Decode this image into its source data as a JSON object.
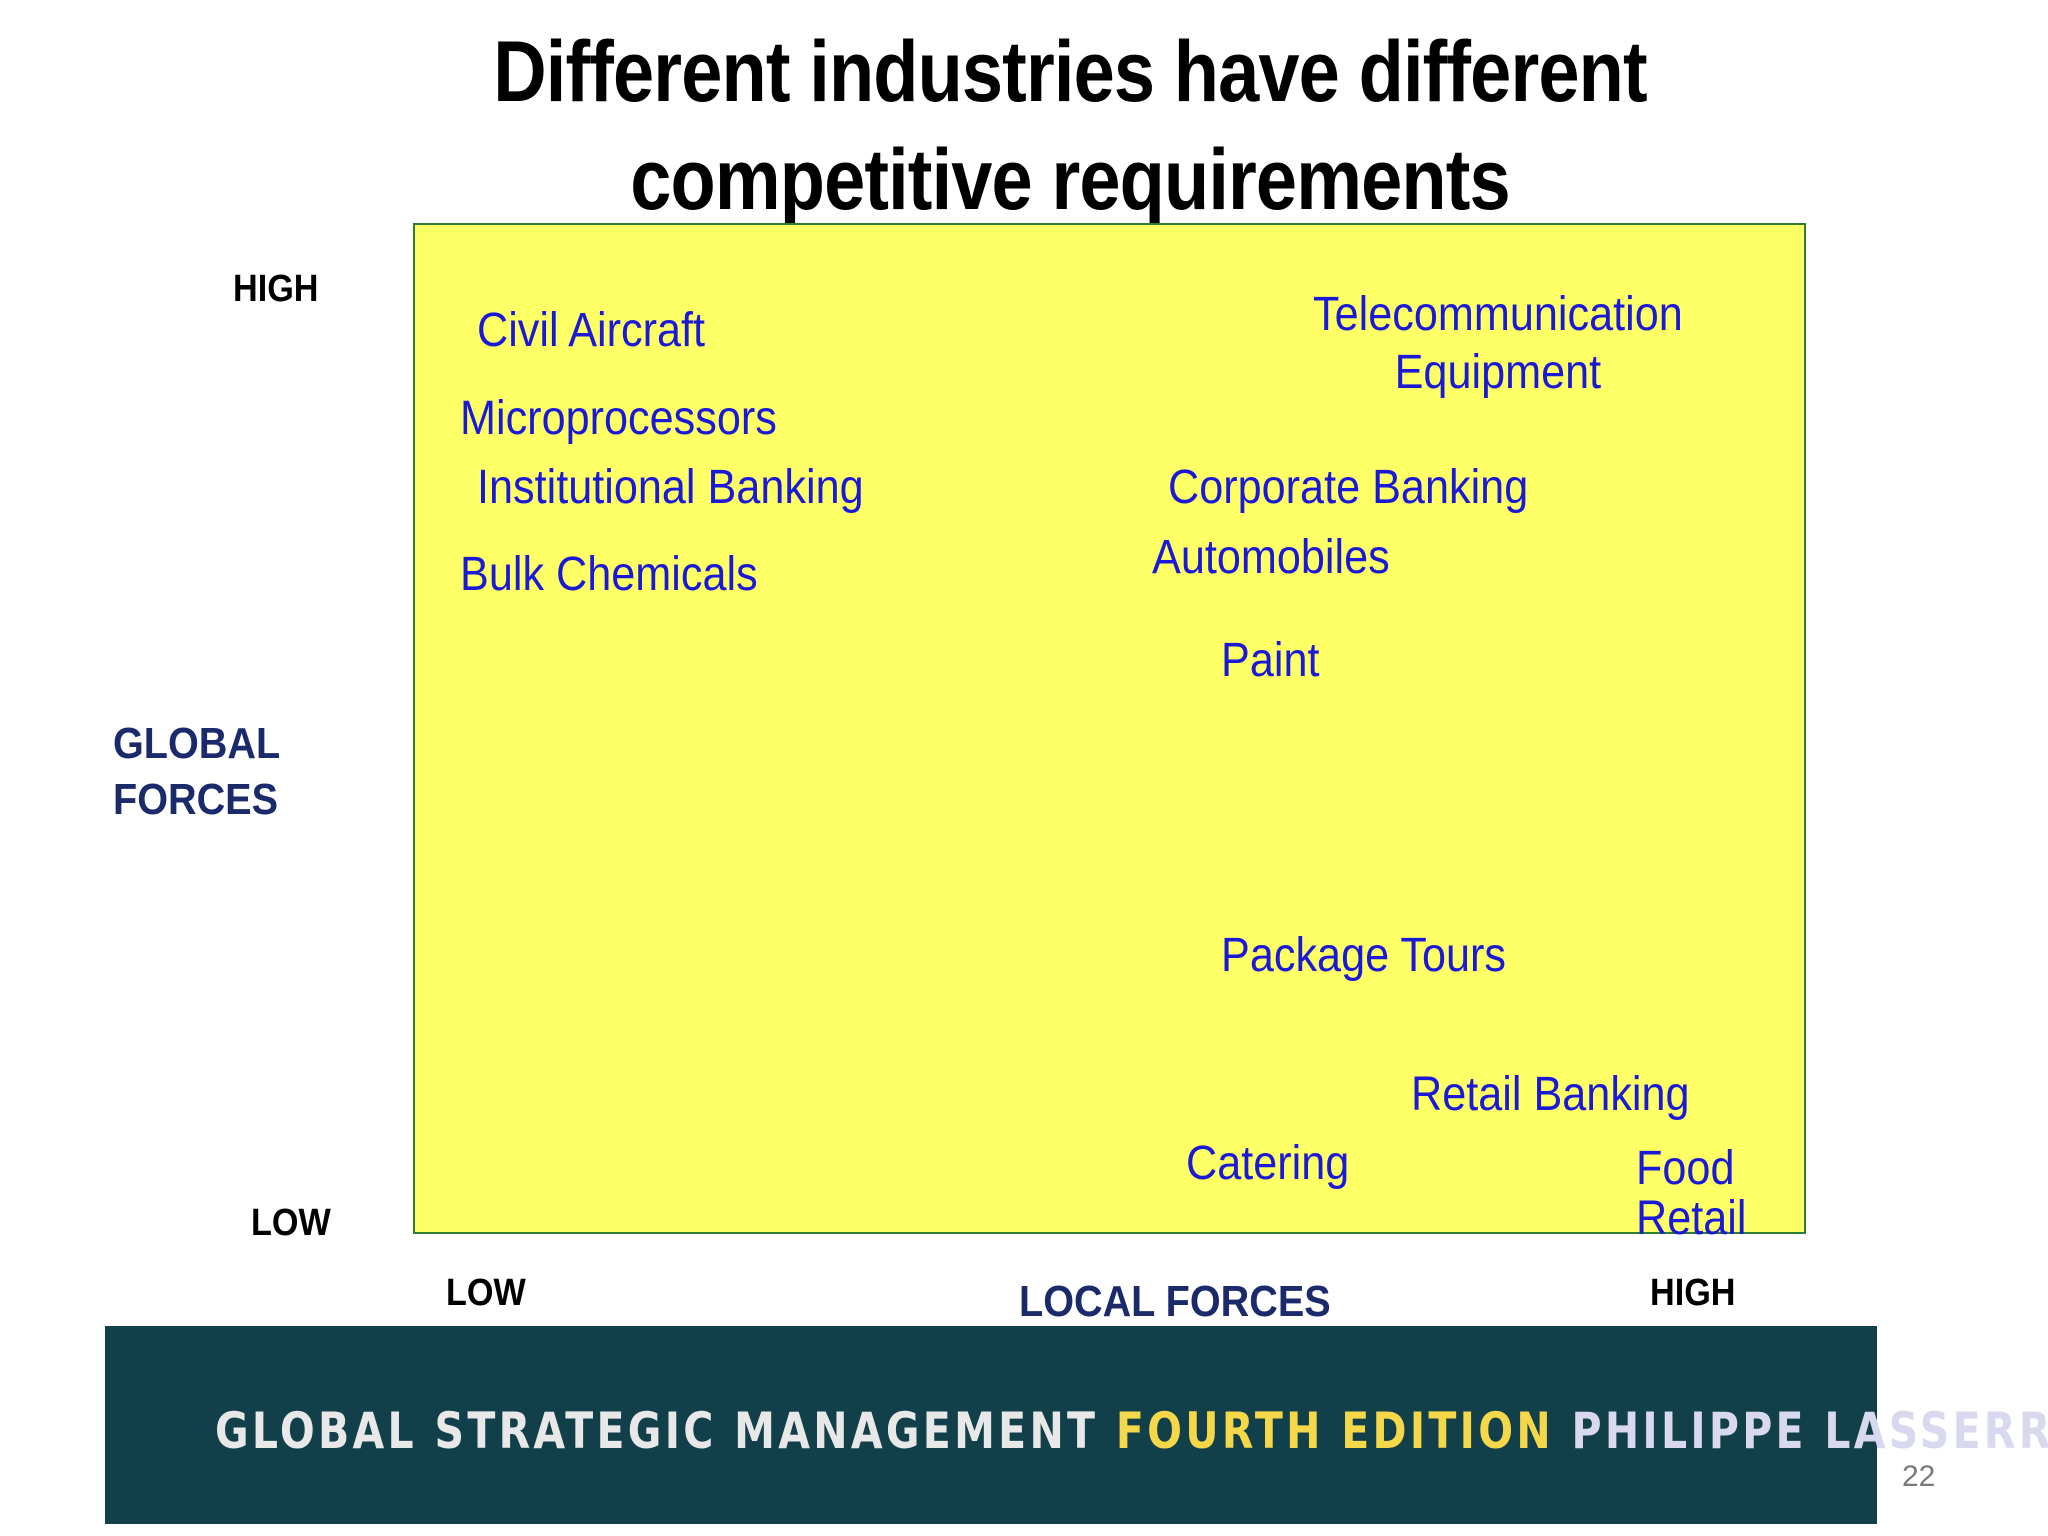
{
  "title": {
    "line1": "Different industries have different",
    "line2": "competitive requirements"
  },
  "axes": {
    "y_title_line1": "GLOBAL",
    "y_title_line2": "FORCES",
    "y_high": "HIGH",
    "y_low": "LOW",
    "x_title": "LOCAL FORCES",
    "x_low": "LOW",
    "x_high": "HIGH"
  },
  "industries": {
    "civil_aircraft": "Civil Aircraft",
    "microprocessors": "Microprocessors",
    "institutional_banking": "Institutional Banking",
    "bulk_chemicals": "Bulk Chemicals",
    "telecom_line1": "Telecommunication",
    "telecom_line2": "Equipment",
    "corporate_banking": "Corporate Banking",
    "automobiles": "Automobiles",
    "paint": "Paint",
    "package_tours": "Package Tours",
    "retail_banking": "Retail Banking",
    "catering": "Catering",
    "food_retail_line1": "Food",
    "food_retail_line2": "Retail"
  },
  "footer": {
    "part1": "GLOBAL STRATEGIC MANAGEMENT",
    "part2": "FOURTH EDITION",
    "part3": "PHILIPPE LASSERRE"
  },
  "page_number": "22",
  "colors": {
    "quadrant_fill": "#ffff66",
    "industry_text": "#1a1ad6",
    "axis_title": "#1b2a6b",
    "footer_bg": "#11404b",
    "footer_accent": "#f5d84a"
  }
}
